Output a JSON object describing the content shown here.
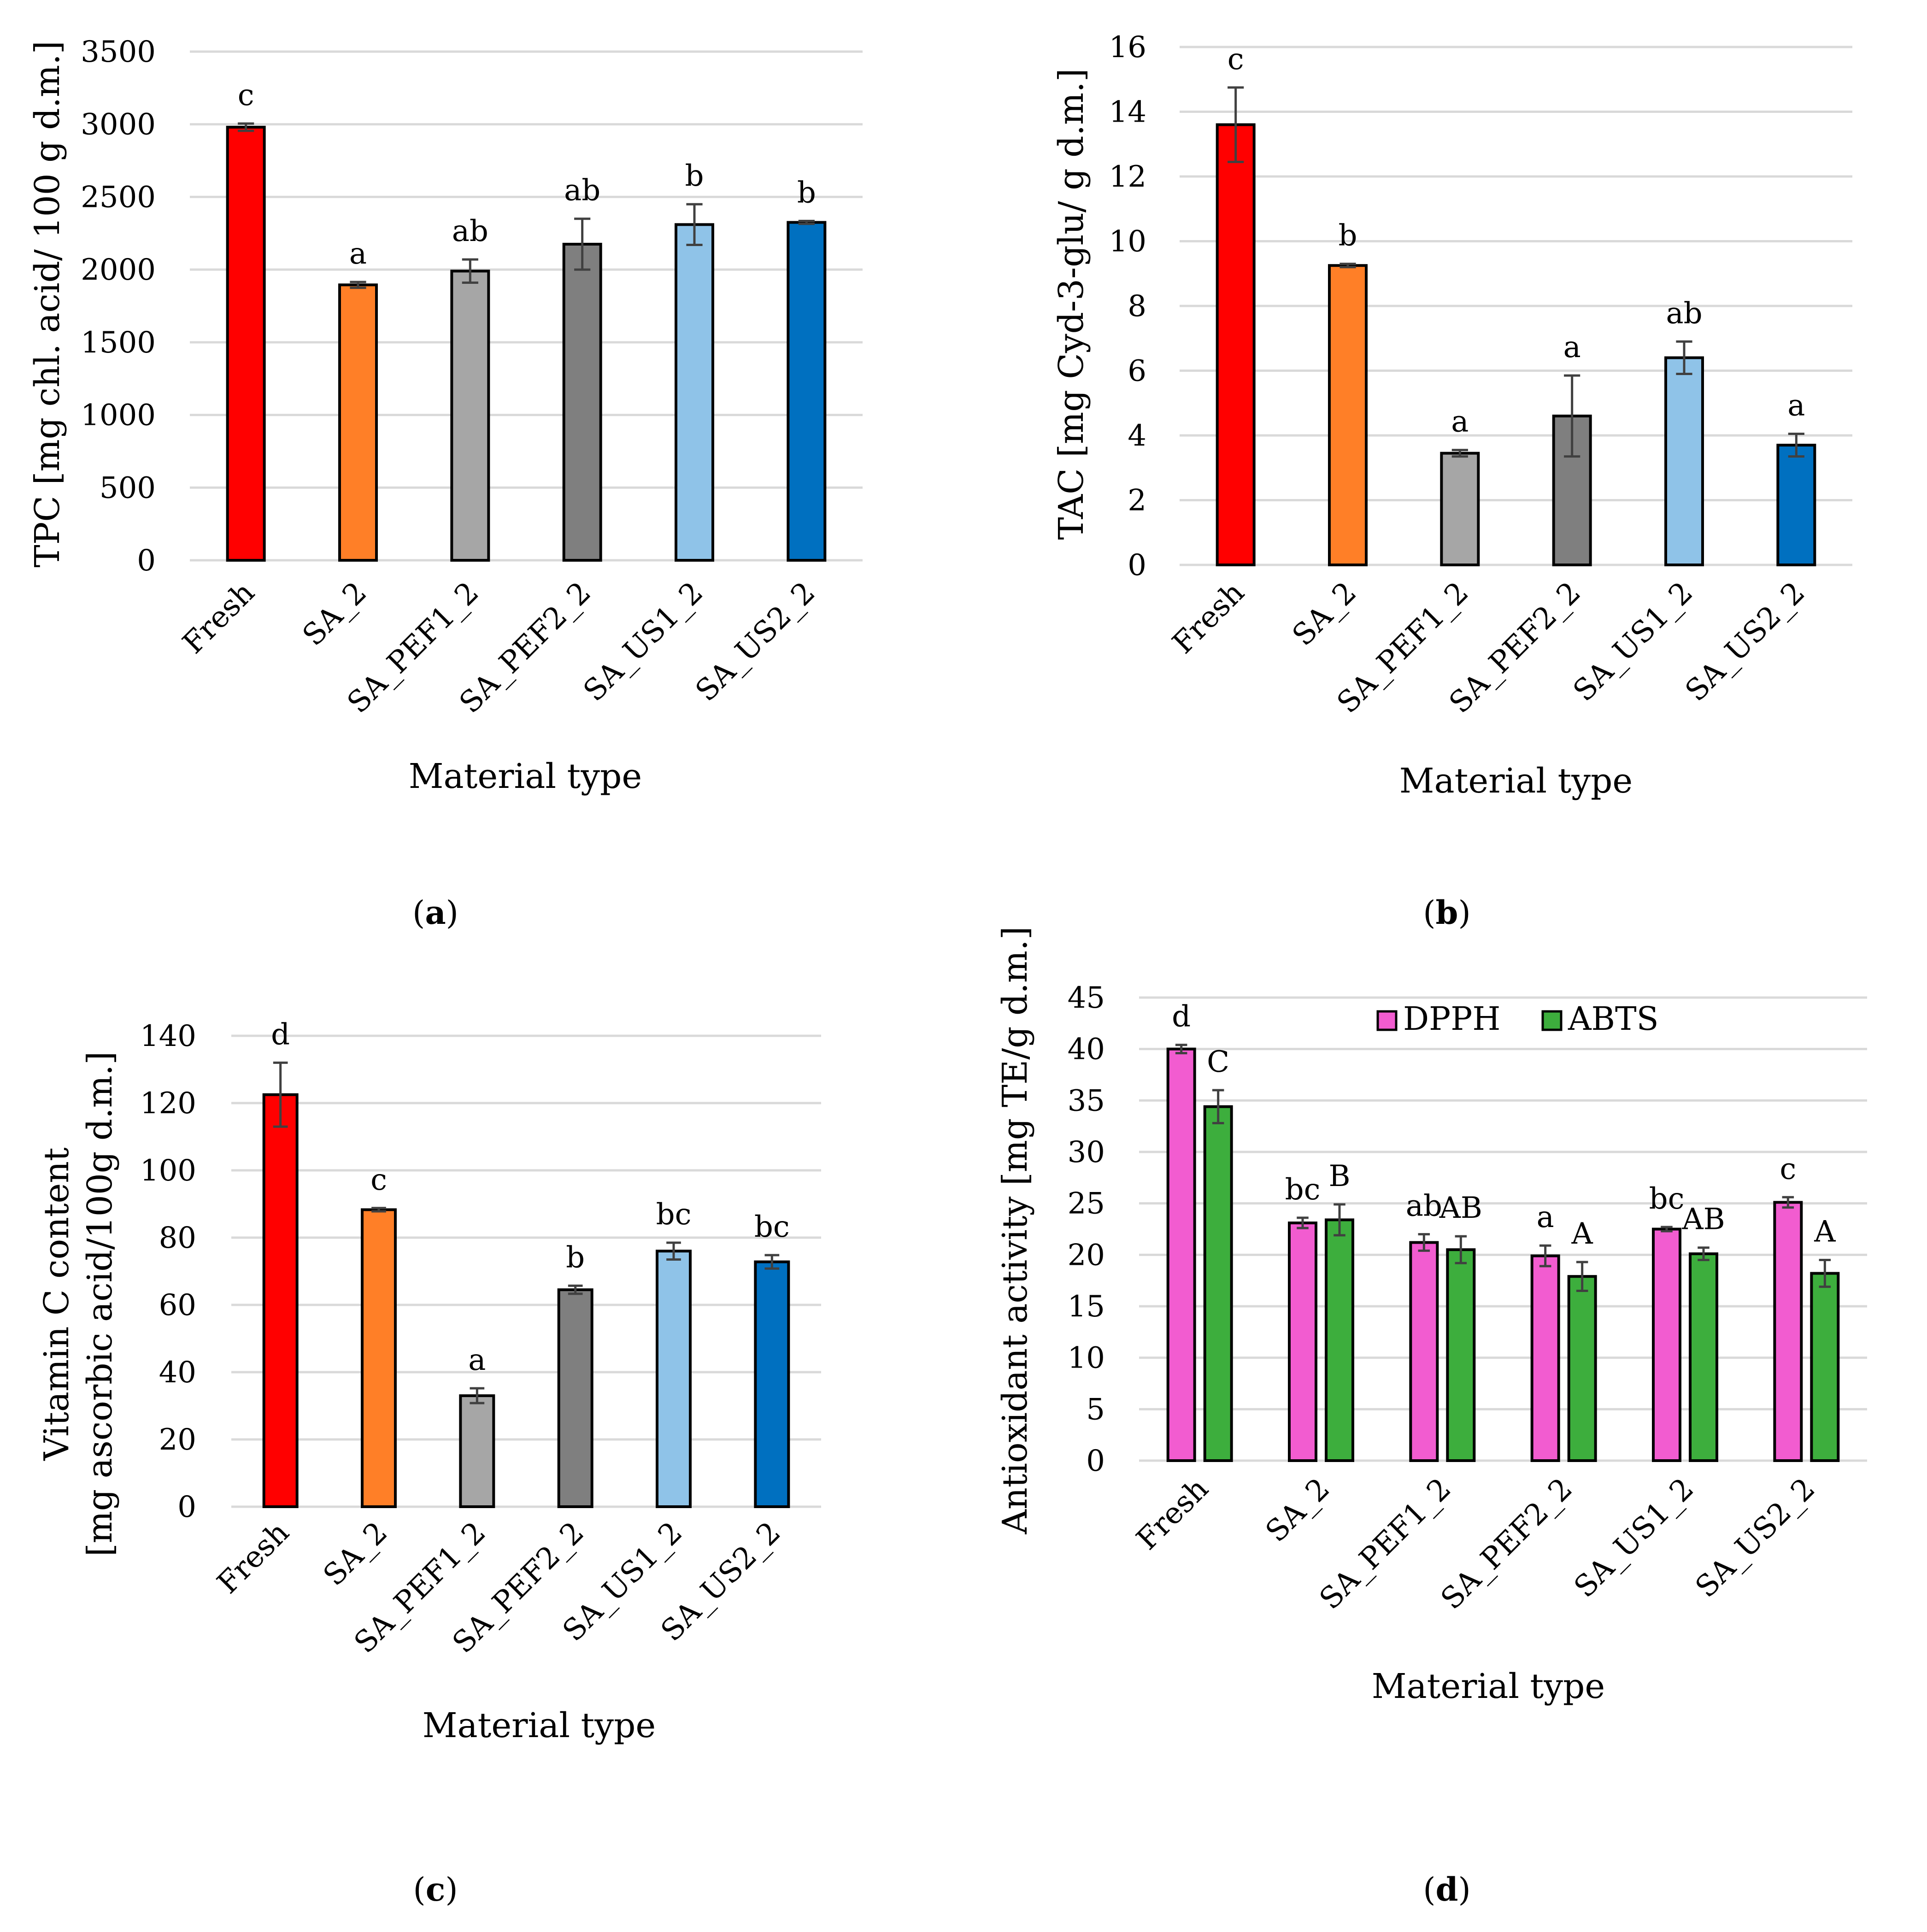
{
  "colors": {
    "red": "#ff0000",
    "orange": "#ff7f27",
    "light_gray": "#a6a6a6",
    "dark_gray": "#7f7f7f",
    "light_blue": "#8fc3e8",
    "blue": "#0070c0",
    "pink": "#f25cd0",
    "green": "#3dae3d",
    "gridline": "#d9d9d9",
    "errorbar": "#404040"
  },
  "chart_data": [
    {
      "panel": "a",
      "type": "bar",
      "categories": [
        "Fresh",
        "SA_2",
        "SA_PEF1_2",
        "SA_PEF2_2",
        "SA_US1_2",
        "SA_US2_2"
      ],
      "values": [
        2980,
        1895,
        1990,
        2175,
        2310,
        2325
      ],
      "errors": [
        25,
        20,
        80,
        175,
        140,
        10
      ],
      "significance": [
        "c",
        "a",
        "ab",
        "ab",
        "b",
        "b"
      ],
      "bar_colors": [
        "#ff0000",
        "#ff7f27",
        "#a6a6a6",
        "#7f7f7f",
        "#8fc3e8",
        "#0070c0"
      ],
      "xlabel": "Material type",
      "ylabel": "TPC [mg chl. acid/ 100 g d.m.]",
      "ylim": [
        0,
        3500
      ],
      "yticks": [
        "0",
        "500",
        "1000",
        "1500",
        "2000",
        "2500",
        "3000",
        "3500"
      ],
      "grid": true
    },
    {
      "panel": "b",
      "type": "bar",
      "categories": [
        "Fresh",
        "SA_2",
        "SA_PEF1_2",
        "SA_PEF2_2",
        "SA_US1_2",
        "SA_US2_2"
      ],
      "values": [
        13.6,
        9.25,
        3.45,
        4.6,
        6.4,
        3.7
      ],
      "errors": [
        1.15,
        0.05,
        0.1,
        1.25,
        0.5,
        0.35
      ],
      "significance": [
        "c",
        "b",
        "a",
        "a",
        "ab",
        "a"
      ],
      "bar_colors": [
        "#ff0000",
        "#ff7f27",
        "#a6a6a6",
        "#7f7f7f",
        "#8fc3e8",
        "#0070c0"
      ],
      "xlabel": "Material type",
      "ylabel": "TAC [mg Cyd-3-glu/ g d.m.]",
      "ylim": [
        0,
        16
      ],
      "yticks": [
        "0",
        "2",
        "4",
        "6",
        "8",
        "10",
        "12",
        "14",
        "16"
      ],
      "grid": true
    },
    {
      "panel": "c",
      "type": "bar",
      "categories": [
        "Fresh",
        "SA_2",
        "SA_PEF1_2",
        "SA_PEF2_2",
        "SA_US1_2",
        "SA_US2_2"
      ],
      "values": [
        122.5,
        88.3,
        33,
        64.5,
        76,
        72.8
      ],
      "errors": [
        9.5,
        0.5,
        2.2,
        1.2,
        2.5,
        2
      ],
      "significance": [
        "d",
        "c",
        "a",
        "b",
        "bc",
        "bc"
      ],
      "bar_colors": [
        "#ff0000",
        "#ff7f27",
        "#a6a6a6",
        "#7f7f7f",
        "#8fc3e8",
        "#0070c0"
      ],
      "xlabel": "Material type",
      "ylabel_line1": "Vitamin C content",
      "ylabel_line2": "[mg ascorbic acid/100g d.m.]",
      "ylim": [
        0,
        140
      ],
      "yticks": [
        "0",
        "20",
        "40",
        "60",
        "80",
        "100",
        "120",
        "140"
      ],
      "grid": true
    },
    {
      "panel": "d",
      "type": "bar",
      "categories": [
        "Fresh",
        "SA_2",
        "SA_PEF1_2",
        "SA_PEF2_2",
        "SA_US1_2",
        "SA_US2_2"
      ],
      "series": [
        {
          "name": "DPPH",
          "color": "#f25cd0",
          "values": [
            40,
            23.1,
            21.2,
            19.9,
            22.5,
            25.1
          ],
          "errors": [
            0.4,
            0.5,
            0.8,
            1,
            0.2,
            0.5
          ],
          "significance": [
            "d",
            "bc",
            "ab",
            "a",
            "bc",
            "c"
          ]
        },
        {
          "name": "ABTS",
          "color": "#3dae3d",
          "values": [
            34.4,
            23.4,
            20.5,
            17.9,
            20.1,
            18.2
          ],
          "errors": [
            1.6,
            1.5,
            1.3,
            1.4,
            0.6,
            1.3
          ],
          "significance": [
            "C",
            "B",
            "AB",
            "A",
            "AB",
            "A"
          ]
        }
      ],
      "xlabel": "Material type",
      "ylabel": "Antioxidant activity [mg TE/g d.m.]",
      "ylim": [
        0,
        45
      ],
      "yticks": [
        "0",
        "5",
        "10",
        "15",
        "20",
        "25",
        "30",
        "35",
        "40",
        "45"
      ],
      "grid": true,
      "legend_position": "top"
    }
  ],
  "panel_labels": [
    {
      "open": "(",
      "letter": "a",
      "close": ")"
    },
    {
      "open": "(",
      "letter": "b",
      "close": ")"
    },
    {
      "open": "(",
      "letter": "c",
      "close": ")"
    },
    {
      "open": "(",
      "letter": "d",
      "close": ")"
    }
  ]
}
